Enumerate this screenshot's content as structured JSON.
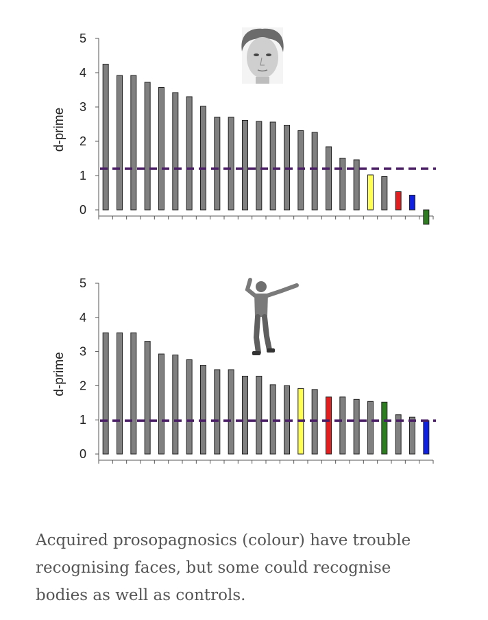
{
  "chart_data": [
    {
      "type": "bar",
      "ylabel": "d-prime",
      "ylim": [
        0,
        5
      ],
      "yticks": [
        "0",
        "1",
        "2",
        "3",
        "4",
        "5"
      ],
      "picture": "face-photo",
      "threshold": 1.2,
      "colors": {
        "control": "#808080",
        "threshold": "#4b1f66"
      },
      "values": [
        4.25,
        3.92,
        3.92,
        3.72,
        3.57,
        3.42,
        3.3,
        3.02,
        2.7,
        2.7,
        2.61,
        2.58,
        2.56,
        2.47,
        2.31,
        2.26,
        1.84,
        1.51,
        1.46,
        1.02,
        0.97,
        0.53,
        0.43,
        -0.42
      ],
      "bar_colors": [
        "#808080",
        "#808080",
        "#808080",
        "#808080",
        "#808080",
        "#808080",
        "#808080",
        "#808080",
        "#808080",
        "#808080",
        "#808080",
        "#808080",
        "#808080",
        "#808080",
        "#808080",
        "#808080",
        "#808080",
        "#808080",
        "#808080",
        "#ffff55",
        "#808080",
        "#e02020",
        "#1020e0",
        "#2e7d20"
      ]
    },
    {
      "type": "bar",
      "ylabel": "d-prime",
      "ylim": [
        0,
        5
      ],
      "yticks": [
        "0",
        "1",
        "2",
        "3",
        "4",
        "5"
      ],
      "picture": "body-figure",
      "threshold": 0.98,
      "colors": {
        "control": "#808080",
        "threshold": "#4b1f66"
      },
      "values": [
        3.55,
        3.55,
        3.55,
        3.3,
        2.93,
        2.9,
        2.76,
        2.6,
        2.47,
        2.47,
        2.28,
        2.28,
        2.03,
        2.0,
        1.92,
        1.89,
        1.67,
        1.67,
        1.6,
        1.54,
        1.52,
        1.15,
        1.08,
        0.98
      ],
      "bar_colors": [
        "#808080",
        "#808080",
        "#808080",
        "#808080",
        "#808080",
        "#808080",
        "#808080",
        "#808080",
        "#808080",
        "#808080",
        "#808080",
        "#808080",
        "#808080",
        "#808080",
        "#ffff55",
        "#808080",
        "#e02020",
        "#808080",
        "#808080",
        "#808080",
        "#2e7d20",
        "#808080",
        "#808080",
        "#1020e0"
      ]
    }
  ],
  "caption": "Acquired prosopagnosics (colour) have trouble recognising faces, but some could recognise bodies as well as controls."
}
